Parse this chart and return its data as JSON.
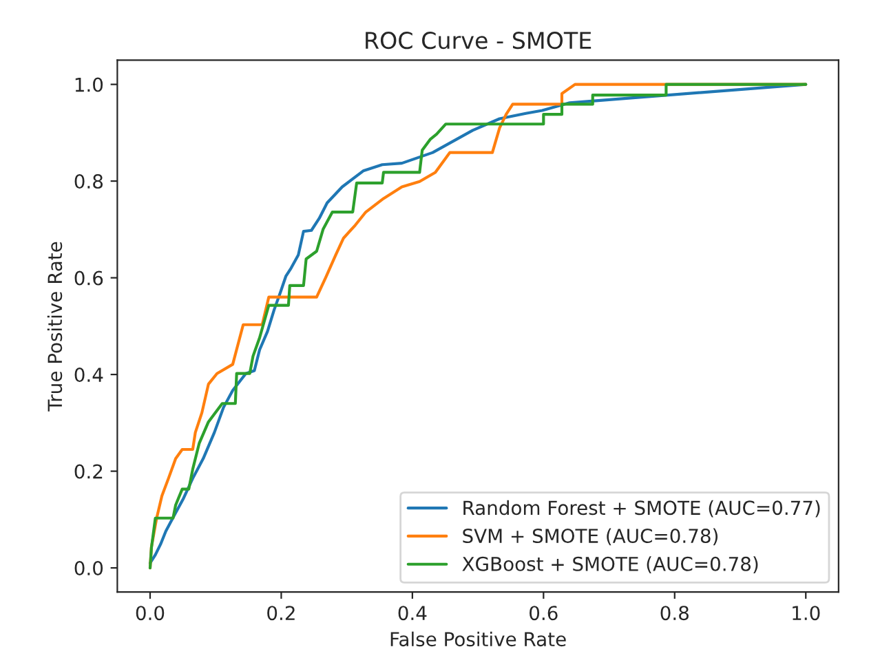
{
  "chart_data": {
    "type": "line",
    "title": "ROC Curve - SMOTE",
    "xlabel": "False Positive Rate",
    "ylabel": "True Positive Rate",
    "xlim": [
      -0.05,
      1.05
    ],
    "ylim": [
      -0.05,
      1.05
    ],
    "xticks": [
      {
        "value": 0,
        "label": "0.0"
      },
      {
        "value": 0.2,
        "label": "0.2"
      },
      {
        "value": 0.4,
        "label": "0.4"
      },
      {
        "value": 0.6,
        "label": "0.6"
      },
      {
        "value": 0.8,
        "label": "0.8"
      },
      {
        "value": 1,
        "label": "1.0"
      }
    ],
    "yticks": [
      {
        "value": 0,
        "label": "0.0"
      },
      {
        "value": 0.2,
        "label": "0.2"
      },
      {
        "value": 0.4,
        "label": "0.4"
      },
      {
        "value": 0.6,
        "label": "0.6"
      },
      {
        "value": 0.8,
        "label": "0.8"
      },
      {
        "value": 1,
        "label": "1.0"
      }
    ],
    "grid": false,
    "legend": "bottom right",
    "line_style": "solid",
    "series": [
      {
        "name": "Random Forest + SMOTE (AUC=0.77)",
        "color": "#1f77b4",
        "x": [
          0,
          0.008,
          0.016,
          0.024,
          0.037,
          0.051,
          0.065,
          0.081,
          0.098,
          0.112,
          0.126,
          0.146,
          0.159,
          0.167,
          0.179,
          0.189,
          0.199,
          0.207,
          0.215,
          0.226,
          0.234,
          0.246,
          0.258,
          0.27,
          0.293,
          0.325,
          0.354,
          0.384,
          0.431,
          0.492,
          0.533,
          0.573,
          0.598,
          0.64,
          1
        ],
        "values": [
          0.01,
          0.027,
          0.049,
          0.076,
          0.109,
          0.144,
          0.185,
          0.226,
          0.28,
          0.332,
          0.367,
          0.402,
          0.408,
          0.451,
          0.489,
          0.533,
          0.571,
          0.603,
          0.62,
          0.647,
          0.696,
          0.698,
          0.723,
          0.755,
          0.788,
          0.821,
          0.834,
          0.837,
          0.859,
          0.905,
          0.929,
          0.94,
          0.946,
          0.962,
          1
        ]
      },
      {
        "name": "SVM + SMOTE (AUC=0.78)",
        "color": "#ff7f0e",
        "x": [
          0,
          0.002,
          0.01,
          0.018,
          0.028,
          0.039,
          0.049,
          0.065,
          0.069,
          0.079,
          0.089,
          0.102,
          0.126,
          0.142,
          0.171,
          0.181,
          0.254,
          0.268,
          0.283,
          0.295,
          0.313,
          0.329,
          0.356,
          0.384,
          0.411,
          0.435,
          0.457,
          0.522,
          0.533,
          0.543,
          0.553,
          0.628,
          0.628,
          0.648,
          1
        ],
        "values": [
          0,
          0.043,
          0.103,
          0.149,
          0.185,
          0.226,
          0.245,
          0.245,
          0.28,
          0.321,
          0.38,
          0.402,
          0.421,
          0.503,
          0.503,
          0.56,
          0.56,
          0.601,
          0.647,
          0.682,
          0.709,
          0.736,
          0.764,
          0.788,
          0.799,
          0.818,
          0.859,
          0.859,
          0.91,
          0.938,
          0.959,
          0.959,
          0.981,
          1,
          1
        ]
      },
      {
        "name": "XGBoost + SMOTE (AUC=0.78)",
        "color": "#2ca02c",
        "x": [
          0,
          0.002,
          0.008,
          0.035,
          0.039,
          0.049,
          0.059,
          0.065,
          0.075,
          0.089,
          0.11,
          0.13,
          0.132,
          0.152,
          0.157,
          0.167,
          0.181,
          0.211,
          0.213,
          0.234,
          0.238,
          0.254,
          0.264,
          0.278,
          0.309,
          0.315,
          0.354,
          0.356,
          0.411,
          0.415,
          0.427,
          0.437,
          0.451,
          0.6,
          0.6,
          0.628,
          0.628,
          0.675,
          0.675,
          0.787,
          0.787,
          1
        ],
        "values": [
          0,
          0.041,
          0.103,
          0.103,
          0.13,
          0.163,
          0.163,
          0.204,
          0.258,
          0.302,
          0.34,
          0.34,
          0.402,
          0.402,
          0.438,
          0.476,
          0.543,
          0.543,
          0.584,
          0.584,
          0.639,
          0.655,
          0.701,
          0.736,
          0.736,
          0.796,
          0.796,
          0.818,
          0.818,
          0.864,
          0.886,
          0.897,
          0.918,
          0.918,
          0.938,
          0.938,
          0.959,
          0.959,
          0.978,
          0.978,
          1,
          1
        ]
      }
    ]
  }
}
